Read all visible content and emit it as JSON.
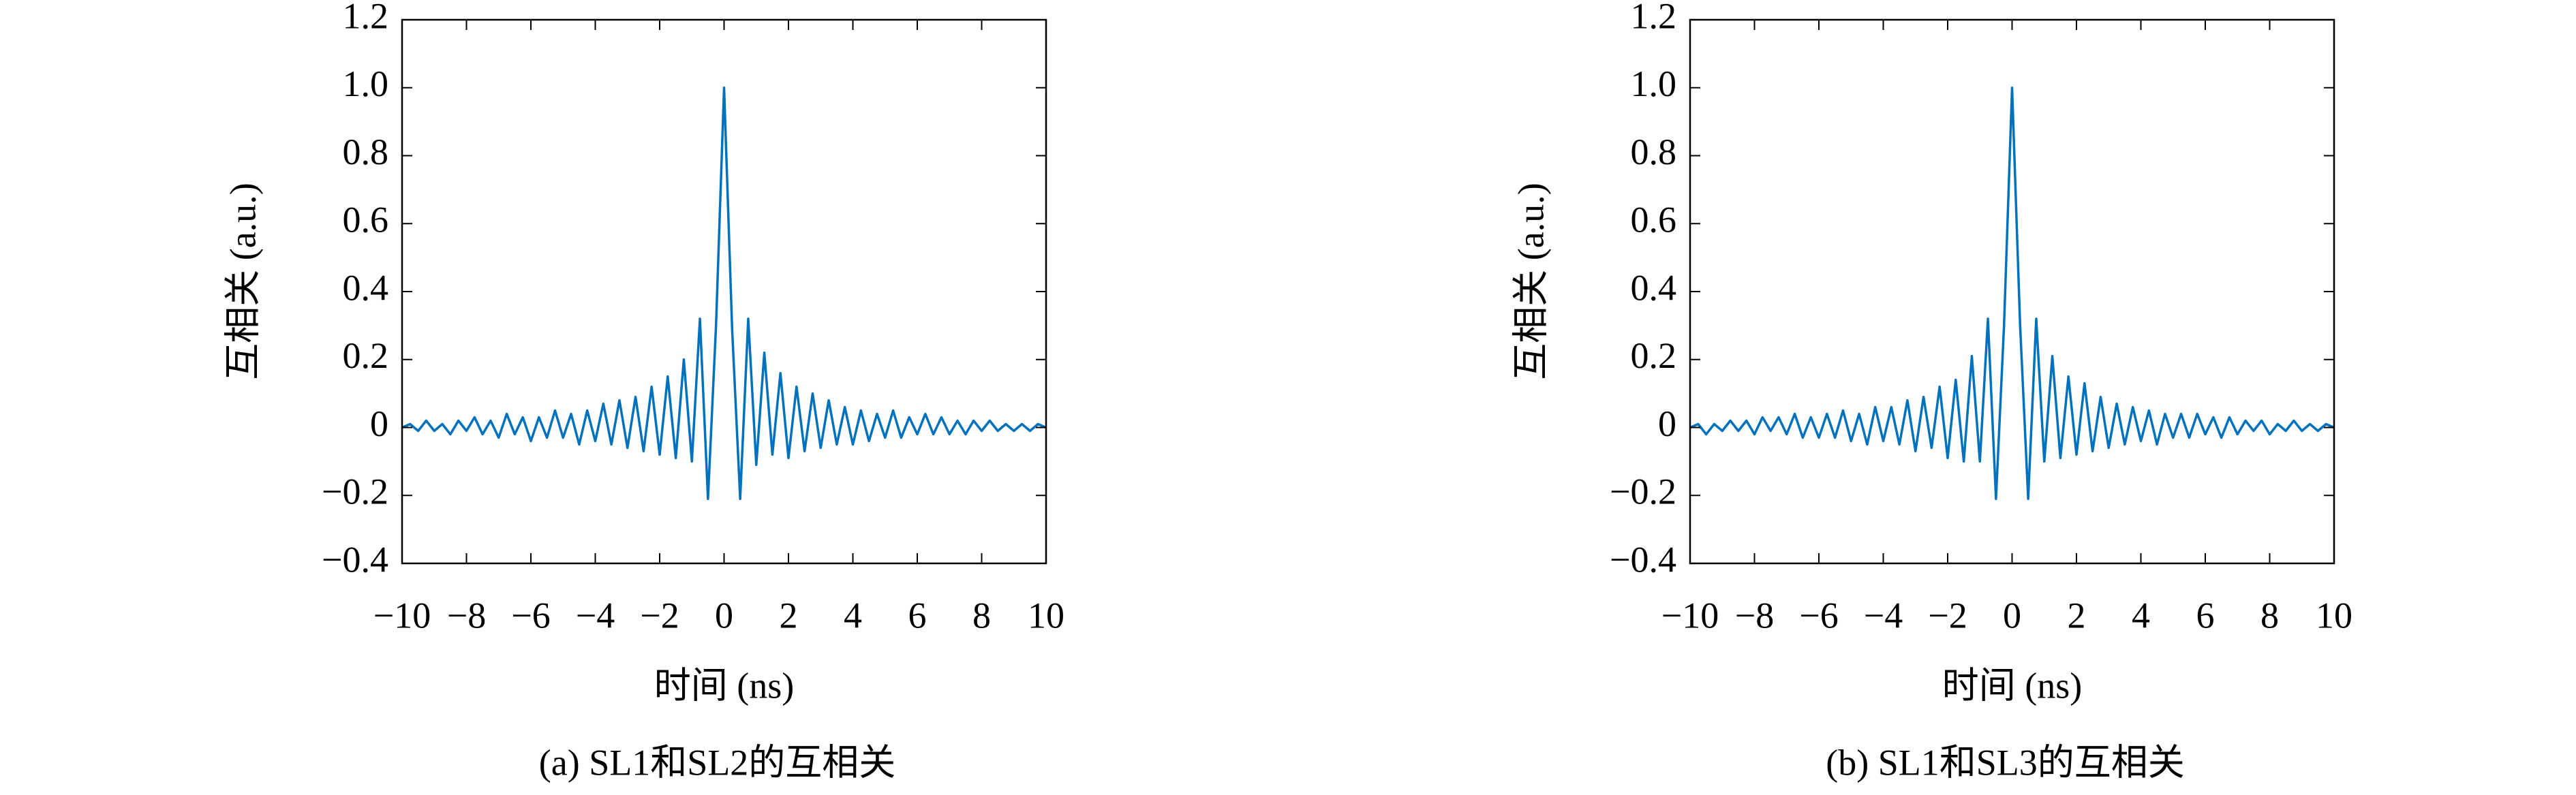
{
  "chart_data": [
    {
      "type": "line",
      "caption": "(a) SL1和SL2的互相关",
      "xlabel": "时间 (ns)",
      "ylabel": "互相关 (a.u.)",
      "color": "#0072bd",
      "x": [
        -10,
        -9.75,
        -9.5,
        -9.25,
        -9,
        -8.75,
        -8.5,
        -8.25,
        -8,
        -7.75,
        -7.5,
        -7.25,
        -7,
        -6.75,
        -6.5,
        -6.25,
        -6,
        -5.75,
        -5.5,
        -5.25,
        -5,
        -4.75,
        -4.5,
        -4.25,
        -4,
        -3.75,
        -3.5,
        -3.25,
        -3,
        -2.75,
        -2.5,
        -2.25,
        -2,
        -1.75,
        -1.5,
        -1.25,
        -1,
        -0.75,
        -0.5,
        -0.25,
        0,
        0.25,
        0.5,
        0.75,
        1,
        1.25,
        1.5,
        1.75,
        2,
        2.25,
        2.5,
        2.75,
        3,
        3.25,
        3.5,
        3.75,
        4,
        4.25,
        4.5,
        4.75,
        5,
        5.25,
        5.5,
        5.75,
        6,
        6.25,
        6.5,
        6.75,
        7,
        7.25,
        7.5,
        7.75,
        8,
        8.25,
        8.5,
        8.75,
        9,
        9.25,
        9.5,
        9.75,
        10
      ],
      "values": [
        0,
        0.01,
        -0.01,
        0.02,
        -0.01,
        0.01,
        -0.02,
        0.02,
        -0.01,
        0.03,
        -0.02,
        0.02,
        -0.03,
        0.04,
        -0.02,
        0.03,
        -0.04,
        0.03,
        -0.03,
        0.05,
        -0.03,
        0.04,
        -0.05,
        0.05,
        -0.04,
        0.07,
        -0.05,
        0.08,
        -0.06,
        0.09,
        -0.07,
        0.12,
        -0.08,
        0.15,
        -0.09,
        0.2,
        -0.1,
        0.32,
        -0.21,
        0.3,
        1,
        0.29,
        -0.21,
        0.32,
        -0.11,
        0.22,
        -0.08,
        0.16,
        -0.09,
        0.12,
        -0.07,
        0.1,
        -0.06,
        0.08,
        -0.05,
        0.06,
        -0.05,
        0.05,
        -0.04,
        0.04,
        -0.03,
        0.05,
        -0.03,
        0.03,
        -0.02,
        0.04,
        -0.02,
        0.03,
        -0.02,
        0.02,
        -0.02,
        0.02,
        -0.01,
        0.02,
        -0.01,
        0.01,
        -0.01,
        0.01,
        -0.01,
        0.01,
        0
      ],
      "xlim": [
        -10,
        10
      ],
      "ylim": [
        -0.4,
        1.2
      ],
      "xticks": [
        {
          "value": -10,
          "label": "−10"
        },
        {
          "value": -8,
          "label": "−8"
        },
        {
          "value": -6,
          "label": "−6"
        },
        {
          "value": -4,
          "label": "−4"
        },
        {
          "value": -2,
          "label": "−2"
        },
        0,
        2,
        4,
        6,
        8,
        10
      ],
      "yticks": [
        {
          "value": -0.4,
          "label": "−0.4"
        },
        {
          "value": -0.2,
          "label": "−0.2"
        },
        0,
        0.2,
        0.4,
        0.6,
        0.8,
        {
          "value": 1,
          "label": "1.0"
        },
        1.2
      ]
    },
    {
      "type": "line",
      "caption": "(b) SL1和SL3的互相关",
      "xlabel": "时间 (ns)",
      "ylabel": "互相关 (a.u.)",
      "color": "#0072bd",
      "x": [
        -10,
        -9.75,
        -9.5,
        -9.25,
        -9,
        -8.75,
        -8.5,
        -8.25,
        -8,
        -7.75,
        -7.5,
        -7.25,
        -7,
        -6.75,
        -6.5,
        -6.25,
        -6,
        -5.75,
        -5.5,
        -5.25,
        -5,
        -4.75,
        -4.5,
        -4.25,
        -4,
        -3.75,
        -3.5,
        -3.25,
        -3,
        -2.75,
        -2.5,
        -2.25,
        -2,
        -1.75,
        -1.5,
        -1.25,
        -1,
        -0.75,
        -0.5,
        -0.25,
        0,
        0.25,
        0.5,
        0.75,
        1,
        1.25,
        1.5,
        1.75,
        2,
        2.25,
        2.5,
        2.75,
        3,
        3.25,
        3.5,
        3.75,
        4,
        4.25,
        4.5,
        4.75,
        5,
        5.25,
        5.5,
        5.75,
        6,
        6.25,
        6.5,
        6.75,
        7,
        7.25,
        7.5,
        7.75,
        8,
        8.25,
        8.5,
        8.75,
        9,
        9.25,
        9.5,
        9.75,
        10
      ],
      "values": [
        0,
        0.01,
        -0.02,
        0.01,
        -0.01,
        0.02,
        -0.01,
        0.02,
        -0.02,
        0.03,
        -0.01,
        0.03,
        -0.02,
        0.04,
        -0.03,
        0.03,
        -0.03,
        0.04,
        -0.03,
        0.05,
        -0.04,
        0.04,
        -0.05,
        0.06,
        -0.04,
        0.06,
        -0.05,
        0.08,
        -0.07,
        0.09,
        -0.06,
        0.12,
        -0.09,
        0.14,
        -0.1,
        0.21,
        -0.1,
        0.32,
        -0.21,
        0.3,
        1,
        0.3,
        -0.21,
        0.32,
        -0.1,
        0.21,
        -0.09,
        0.15,
        -0.08,
        0.13,
        -0.07,
        0.09,
        -0.06,
        0.07,
        -0.05,
        0.06,
        -0.04,
        0.05,
        -0.05,
        0.04,
        -0.03,
        0.04,
        -0.03,
        0.04,
        -0.02,
        0.03,
        -0.03,
        0.03,
        -0.02,
        0.02,
        -0.01,
        0.02,
        -0.02,
        0.01,
        -0.01,
        0.02,
        -0.01,
        0.01,
        -0.01,
        0.01,
        0
      ],
      "xlim": [
        -10,
        10
      ],
      "ylim": [
        -0.4,
        1.2
      ],
      "xticks": [
        {
          "value": -10,
          "label": "−10"
        },
        {
          "value": -8,
          "label": "−8"
        },
        {
          "value": -6,
          "label": "−6"
        },
        {
          "value": -4,
          "label": "−4"
        },
        {
          "value": -2,
          "label": "−2"
        },
        0,
        2,
        4,
        6,
        8,
        10
      ],
      "yticks": [
        {
          "value": -0.4,
          "label": "−0.4"
        },
        {
          "value": -0.2,
          "label": "−0.2"
        },
        0,
        0.2,
        0.4,
        0.6,
        0.8,
        {
          "value": 1,
          "label": "1.0"
        },
        1.2
      ]
    }
  ]
}
